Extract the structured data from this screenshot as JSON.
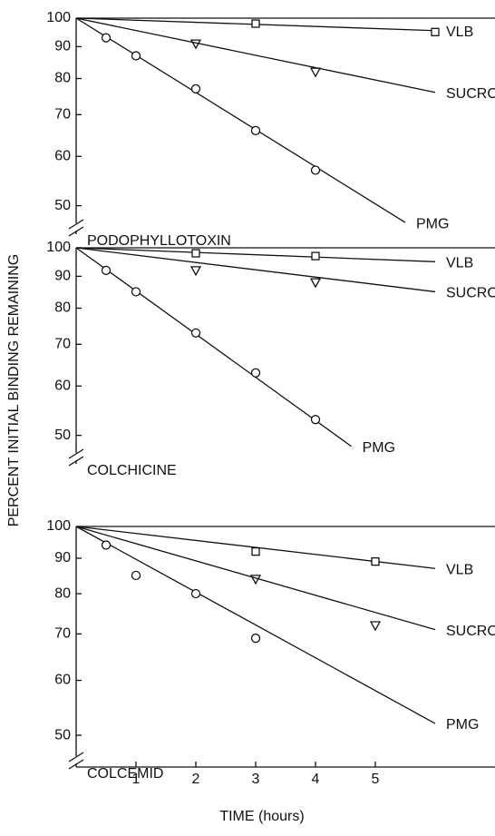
{
  "chart_data": [
    {
      "type": "line",
      "title": "PODOPHYLLOTOXIN",
      "ylabel": "PERCENT INITIAL BINDING REMAINING",
      "log_y": true,
      "xlim": [
        0,
        7
      ],
      "ylim": [
        45,
        100
      ],
      "yticks": [
        100,
        90,
        80,
        70,
        60,
        50
      ],
      "series": [
        {
          "name": "VLB",
          "color": "#000000",
          "marker": "square",
          "x": [
            3,
            6
          ],
          "values": [
            98,
            95
          ],
          "fit": {
            "x": [
              0,
              6
            ],
            "values": [
              100,
              95.5
            ]
          }
        },
        {
          "name": "SUCROSE",
          "color": "#000000",
          "marker": "triangle-down",
          "x": [
            2,
            4
          ],
          "values": [
            91,
            82
          ],
          "fit": {
            "x": [
              0,
              6
            ],
            "values": [
              100,
              76
            ]
          }
        },
        {
          "name": "PMG",
          "color": "#000000",
          "marker": "circle",
          "x": [
            0.5,
            1,
            2,
            3,
            4
          ],
          "values": [
            93,
            87,
            77,
            66,
            57
          ],
          "fit": {
            "x": [
              0,
              5.5
            ],
            "values": [
              100,
              47
            ]
          }
        }
      ]
    },
    {
      "type": "line",
      "title": "COLCHICINE",
      "log_y": true,
      "xlim": [
        0,
        7
      ],
      "ylim": [
        45,
        100
      ],
      "yticks": [
        100,
        90,
        80,
        70,
        60,
        50
      ],
      "series": [
        {
          "name": "VLB",
          "color": "#000000",
          "marker": "square",
          "x": [
            2,
            4
          ],
          "values": [
            98,
            97
          ],
          "fit": {
            "x": [
              0,
              6
            ],
            "values": [
              100,
              95
            ]
          }
        },
        {
          "name": "SUCROSE",
          "color": "#000000",
          "marker": "triangle-down",
          "x": [
            2,
            4
          ],
          "values": [
            92,
            88
          ],
          "fit": {
            "x": [
              0,
              6
            ],
            "values": [
              100,
              85
            ]
          }
        },
        {
          "name": "PMG",
          "color": "#000000",
          "marker": "circle",
          "x": [
            0.5,
            1,
            2,
            3,
            4
          ],
          "values": [
            92,
            85,
            73,
            63,
            53
          ],
          "fit": {
            "x": [
              0,
              4.6
            ],
            "values": [
              100,
              48
            ]
          }
        }
      ]
    },
    {
      "type": "line",
      "title": "COLCEMID",
      "xlabel": "TIME (hours)",
      "log_y": true,
      "xlim": [
        0,
        7
      ],
      "ylim": [
        45,
        100
      ],
      "yticks": [
        100,
        90,
        80,
        70,
        60,
        50
      ],
      "xticks": [
        1,
        2,
        3,
        4,
        5
      ],
      "series": [
        {
          "name": "VLB",
          "color": "#000000",
          "marker": "square",
          "x": [
            3,
            5
          ],
          "values": [
            92,
            89
          ],
          "fit": {
            "x": [
              0,
              6
            ],
            "values": [
              100,
              87
            ]
          }
        },
        {
          "name": "SUCROSE",
          "color": "#000000",
          "marker": "triangle-down",
          "x": [
            3,
            5
          ],
          "values": [
            84,
            72
          ],
          "fit": {
            "x": [
              0,
              6
            ],
            "values": [
              100,
              71
            ]
          }
        },
        {
          "name": "PMG",
          "color": "#000000",
          "marker": "circle",
          "x": [
            0.5,
            1,
            2,
            3
          ],
          "values": [
            94,
            85,
            80,
            69
          ],
          "fit": {
            "x": [
              0,
              6
            ],
            "values": [
              100,
              52
            ]
          }
        }
      ]
    }
  ]
}
